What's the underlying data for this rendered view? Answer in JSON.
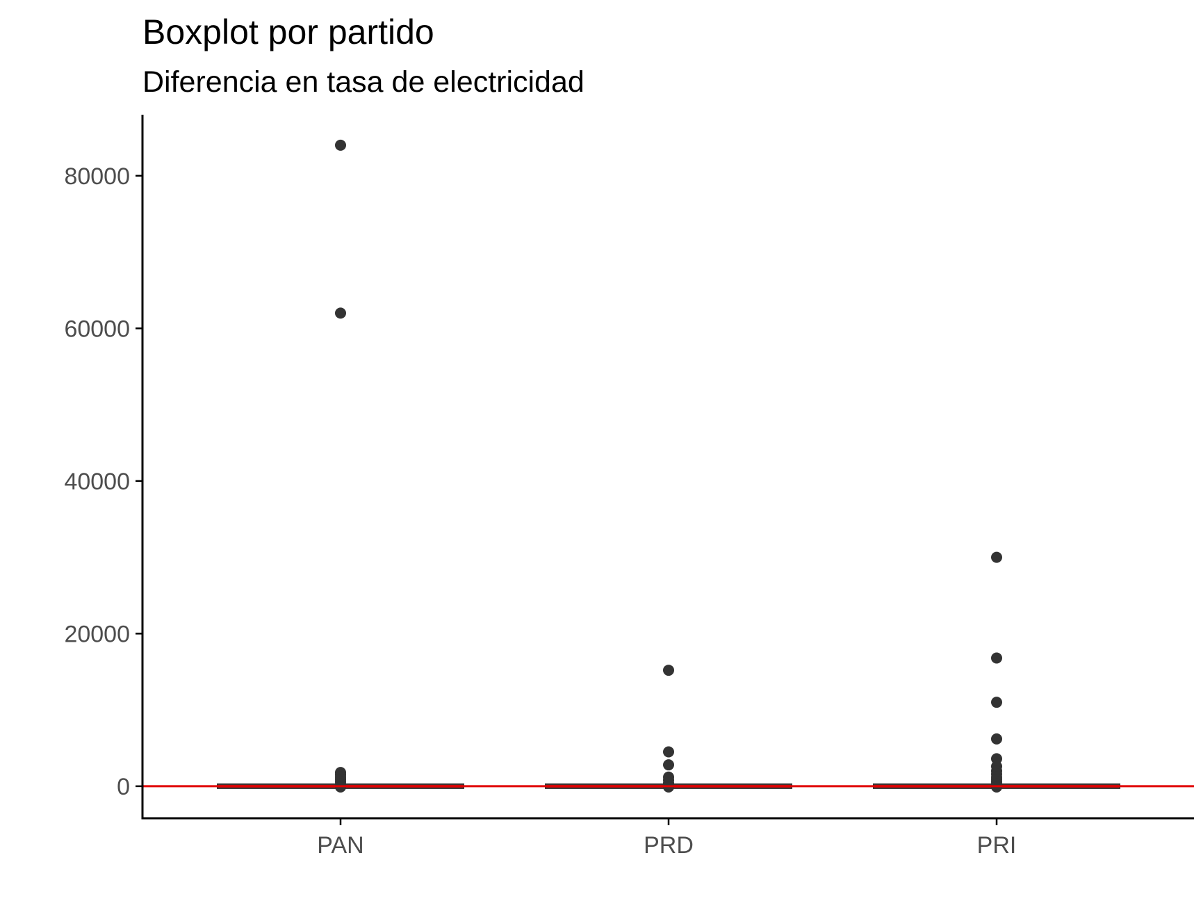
{
  "chart_data": {
    "type": "boxplot",
    "title": "Boxplot por partido",
    "subtitle": "Diferencia en tasa de electricidad",
    "xlabel": "",
    "ylabel": "",
    "categories": [
      "PAN",
      "PRD",
      "PRI"
    ],
    "ylim": [
      -4200,
      88000
    ],
    "y_ticks": [
      0,
      20000,
      40000,
      60000,
      80000
    ],
    "y_tick_labels": [
      "0",
      "20000",
      "40000",
      "60000",
      "80000"
    ],
    "grid": false,
    "legend": "none",
    "reference_line": {
      "y": 0,
      "color": "#e00000"
    },
    "boxes": [
      {
        "name": "PAN",
        "q1": -50,
        "median": 0,
        "q3": 50,
        "whisker_low": -150,
        "whisker_high": 150,
        "outliers": [
          84000,
          62000,
          1800,
          1500,
          1200,
          900,
          600,
          300,
          -100
        ]
      },
      {
        "name": "PRD",
        "q1": -50,
        "median": 0,
        "q3": 50,
        "whisker_low": -150,
        "whisker_high": 150,
        "outliers": [
          15200,
          4500,
          2800,
          1200,
          800,
          400,
          -100
        ]
      },
      {
        "name": "PRI",
        "q1": -50,
        "median": 0,
        "q3": 50,
        "whisker_low": -150,
        "whisker_high": 150,
        "outliers": [
          30000,
          16800,
          11000,
          6200,
          3600,
          2600,
          2000,
          1600,
          1200,
          900,
          600,
          300,
          -100
        ]
      }
    ],
    "colors": {
      "axis": "#000000",
      "tick_label": "#4d4d4d",
      "point": "#333333",
      "box_fill": "#c0141a",
      "box_edge": "#333333",
      "reference_line": "#e00000"
    }
  }
}
